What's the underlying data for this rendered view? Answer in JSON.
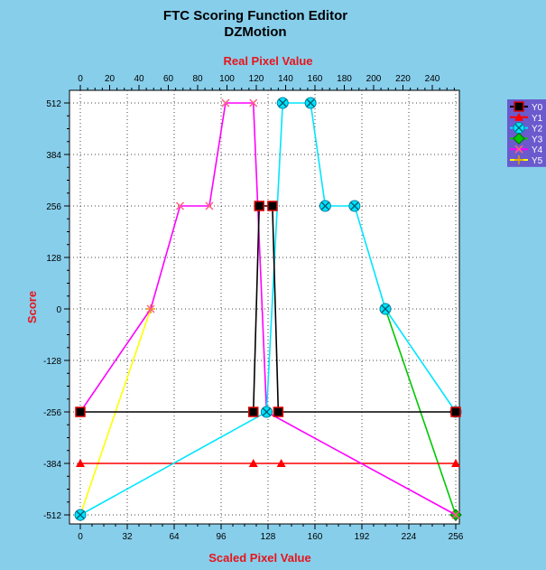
{
  "title": "FTC Scoring Function Editor",
  "subtitle": "DZMotion",
  "chart_data": {
    "type": "line",
    "xlabel": "Scaled Pixel Value",
    "x2label": "Real Pixel Value",
    "ylabel": "Score",
    "xlim": [
      0,
      256
    ],
    "ylim": [
      -512,
      512
    ],
    "x2lim": [
      0,
      256
    ],
    "xticks": [
      0,
      32,
      64,
      96,
      128,
      160,
      192,
      224,
      256
    ],
    "x2ticks": [
      0,
      20,
      40,
      60,
      80,
      100,
      120,
      140,
      160,
      180,
      200,
      220,
      240
    ],
    "yticks": [
      512,
      384,
      256,
      128,
      0,
      -128,
      -256,
      -384,
      -512
    ],
    "grid": true,
    "legend_position": "right",
    "series": [
      {
        "name": "Y0",
        "color": "#000000",
        "marker": "square",
        "x": [
          0,
          118,
          122,
          131,
          135,
          256
        ],
        "y": [
          -256,
          -256,
          256,
          256,
          -256,
          -256
        ]
      },
      {
        "name": "Y1",
        "color": "#ff0000",
        "marker": "triangle",
        "x": [
          0,
          118,
          137,
          256
        ],
        "y": [
          -384,
          -384,
          -384,
          -384
        ]
      },
      {
        "name": "Y2",
        "color": "#00e5ff",
        "marker": "circle-x",
        "x": [
          0,
          127,
          138,
          157,
          167,
          187,
          208,
          256
        ],
        "y": [
          -512,
          -256,
          512,
          512,
          256,
          256,
          0,
          -256
        ]
      },
      {
        "name": "Y3",
        "color": "#00c800",
        "marker": "diamond",
        "x": [
          208,
          256
        ],
        "y": [
          0,
          -512
        ]
      },
      {
        "name": "Y4",
        "color": "#ff00ff",
        "marker": "x",
        "x": [
          0,
          48,
          68,
          88,
          99,
          118,
          127,
          256
        ],
        "y": [
          -256,
          0,
          256,
          256,
          512,
          512,
          -256,
          -512
        ]
      },
      {
        "name": "Y5",
        "color": "#ffff00",
        "marker": "plus",
        "x": [
          0,
          48
        ],
        "y": [
          -512,
          0
        ]
      }
    ]
  }
}
